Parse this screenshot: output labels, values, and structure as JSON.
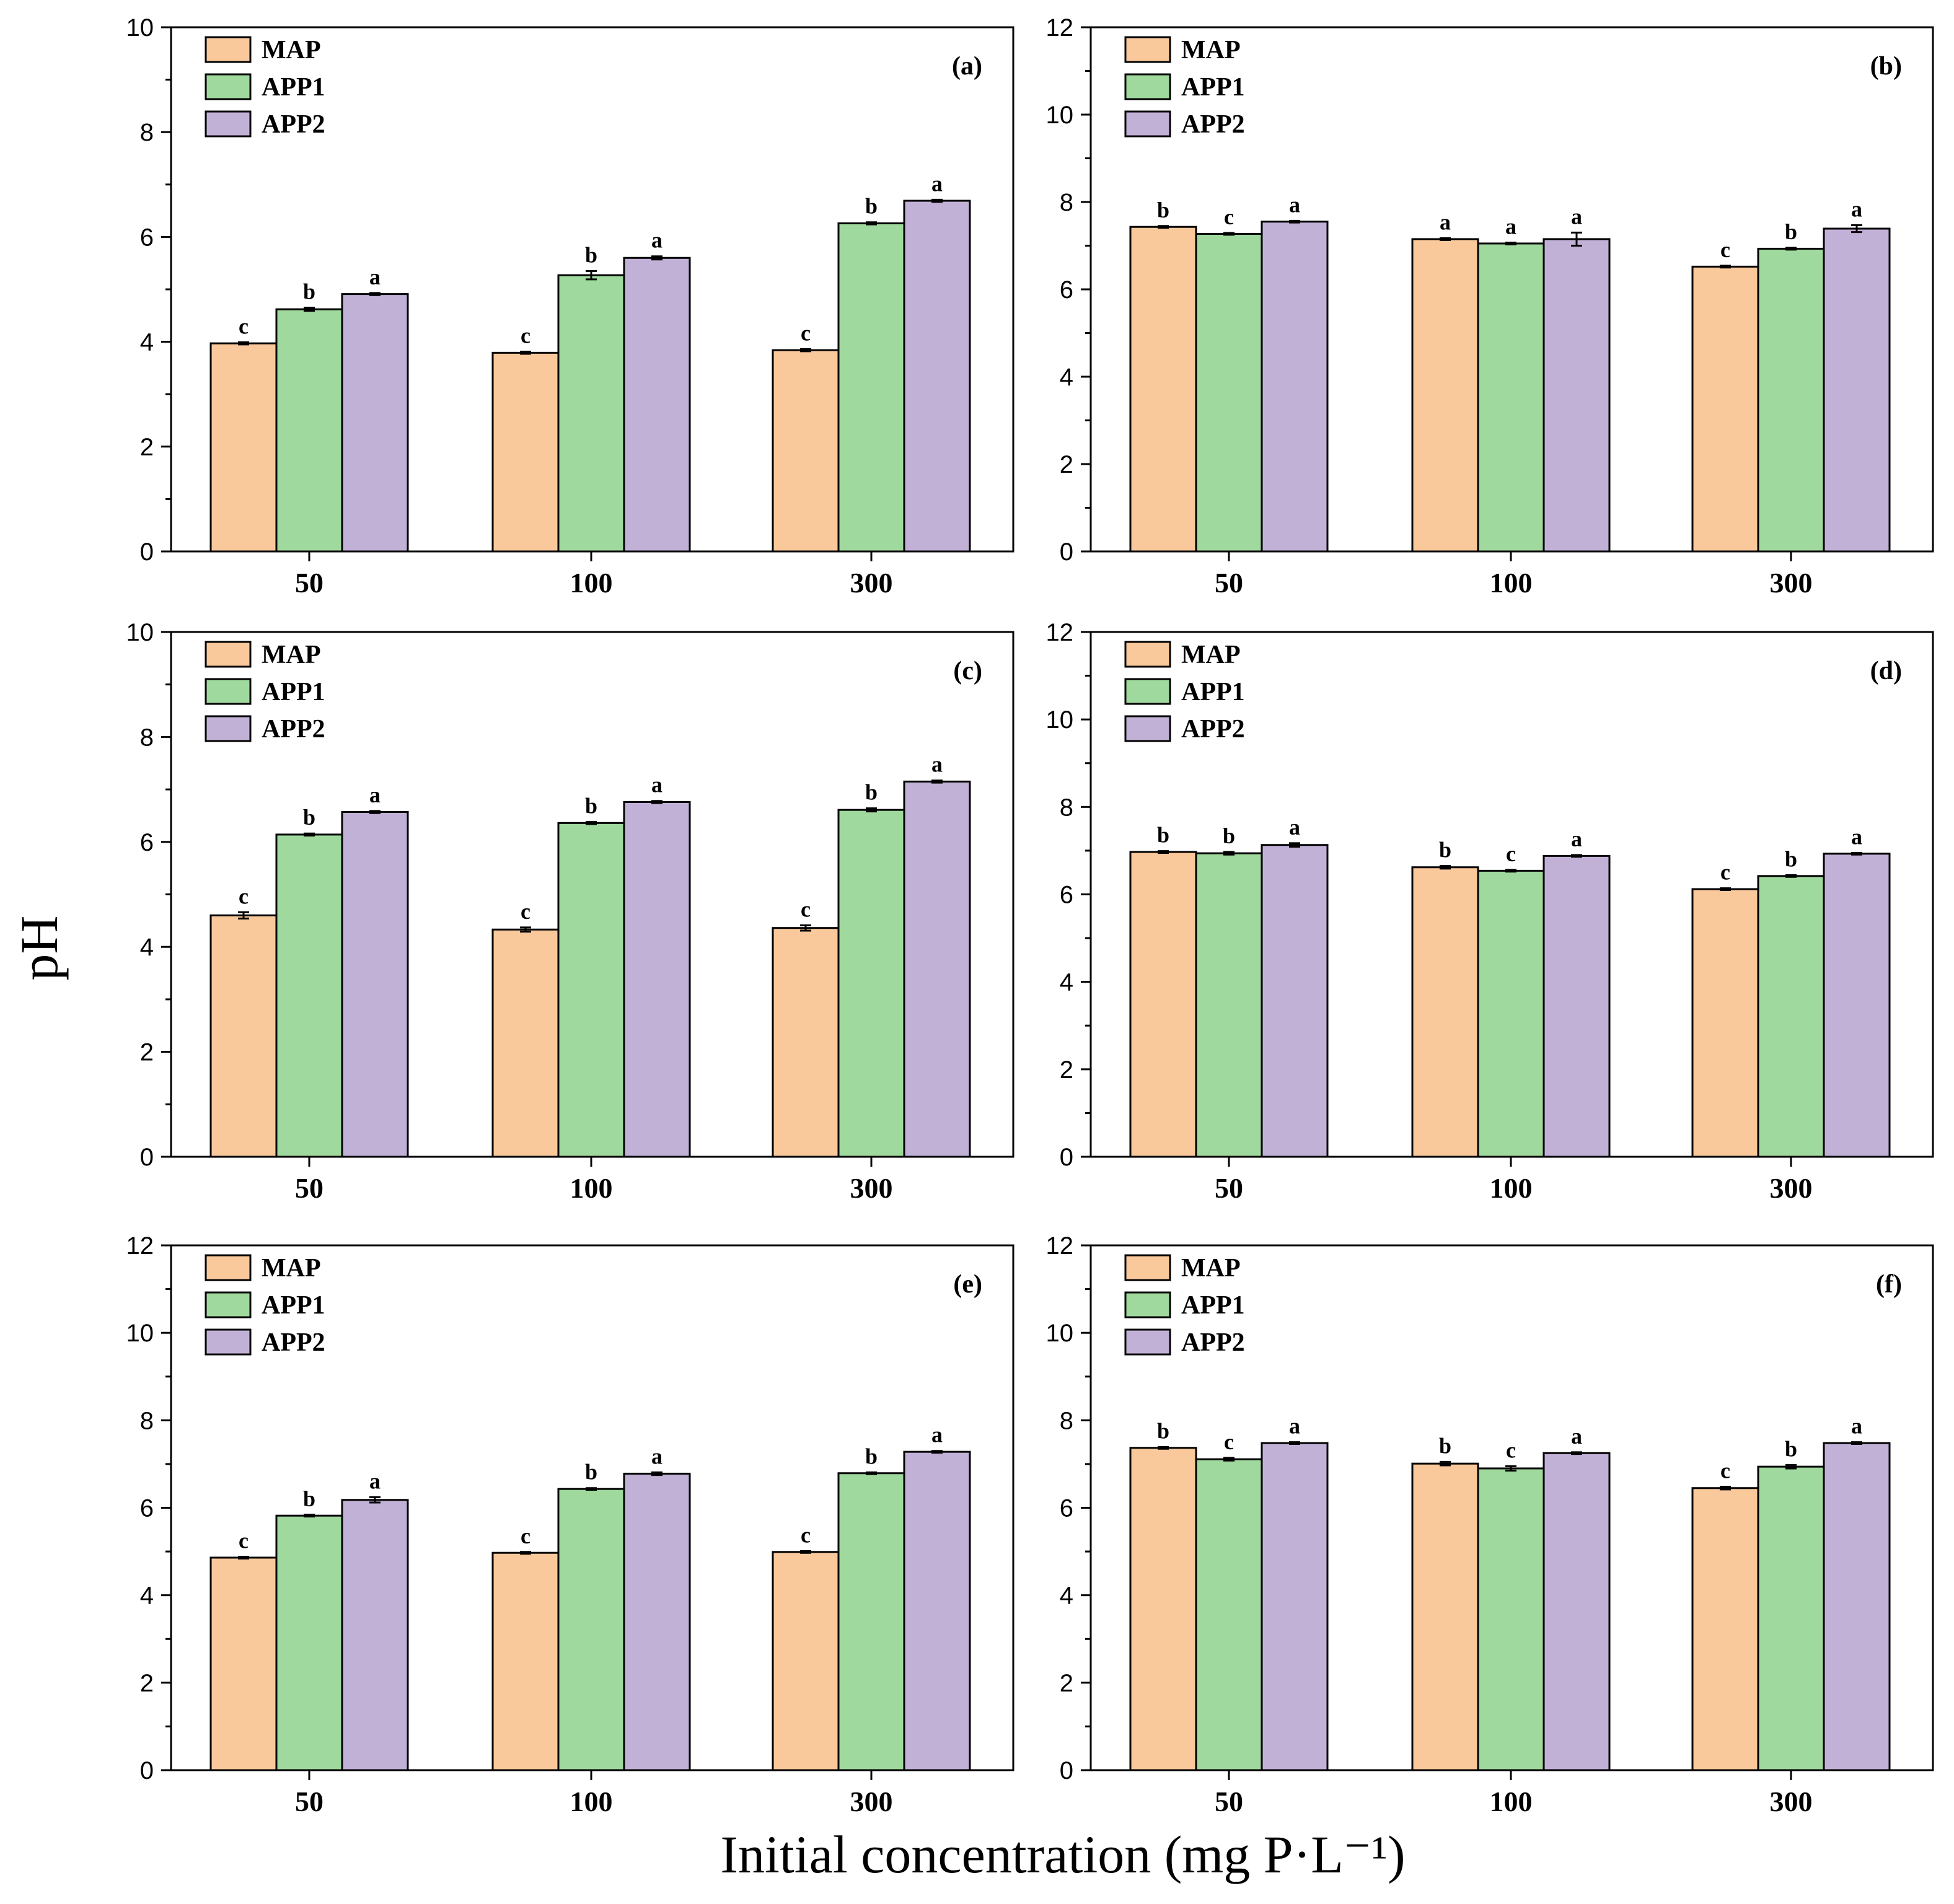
{
  "figure": {
    "ylabel": "pH",
    "xlabel": "Initial concentration (mg P·L⁻¹)"
  },
  "colors": {
    "MAP": "#f9c89b",
    "APP1": "#a0d99e",
    "APP2": "#c2b1d7"
  },
  "chart_data": [
    {
      "type": "bar",
      "panel": "(a)",
      "categories": [
        "50",
        "100",
        "300"
      ],
      "series": [
        {
          "name": "MAP",
          "values": [
            3.97,
            3.79,
            3.84
          ],
          "errors": [
            0.02,
            0.02,
            0.02
          ],
          "letters": [
            "c",
            "c",
            "c"
          ]
        },
        {
          "name": "APP1",
          "values": [
            4.62,
            5.27,
            6.26
          ],
          "errors": [
            0.03,
            0.08,
            0.02
          ],
          "letters": [
            "b",
            "b",
            "b"
          ]
        },
        {
          "name": "APP2",
          "values": [
            4.91,
            5.6,
            6.69
          ],
          "errors": [
            0.02,
            0.03,
            0.02
          ],
          "letters": [
            "a",
            "a",
            "a"
          ]
        }
      ],
      "ylim": [
        0,
        10
      ],
      "yticks": [
        0,
        2,
        4,
        6,
        8,
        10
      ]
    },
    {
      "type": "bar",
      "panel": "(b)",
      "categories": [
        "50",
        "100",
        "300"
      ],
      "series": [
        {
          "name": "MAP",
          "values": [
            7.43,
            7.15,
            6.52
          ],
          "errors": [
            0.02,
            0.02,
            0.02
          ],
          "letters": [
            "b",
            "a",
            "c"
          ]
        },
        {
          "name": "APP1",
          "values": [
            7.27,
            7.05,
            6.93
          ],
          "errors": [
            0.02,
            0.02,
            0.02
          ],
          "letters": [
            "c",
            "a",
            "b"
          ]
        },
        {
          "name": "APP2",
          "values": [
            7.55,
            7.15,
            7.39
          ],
          "errors": [
            0.02,
            0.15,
            0.08
          ],
          "letters": [
            "a",
            "a",
            "a"
          ]
        }
      ],
      "ylim": [
        0,
        12
      ],
      "yticks": [
        0,
        2,
        4,
        6,
        8,
        10,
        12
      ]
    },
    {
      "type": "bar",
      "panel": "(c)",
      "categories": [
        "50",
        "100",
        "300"
      ],
      "series": [
        {
          "name": "MAP",
          "values": [
            4.6,
            4.33,
            4.36
          ],
          "errors": [
            0.06,
            0.04,
            0.05
          ],
          "letters": [
            "c",
            "c",
            "c"
          ]
        },
        {
          "name": "APP1",
          "values": [
            6.14,
            6.36,
            6.61
          ],
          "errors": [
            0.02,
            0.02,
            0.03
          ],
          "letters": [
            "b",
            "b",
            "b"
          ]
        },
        {
          "name": "APP2",
          "values": [
            6.57,
            6.76,
            7.15
          ],
          "errors": [
            0.02,
            0.02,
            0.02
          ],
          "letters": [
            "a",
            "a",
            "a"
          ]
        }
      ],
      "ylim": [
        0,
        10
      ],
      "yticks": [
        0,
        2,
        4,
        6,
        8,
        10
      ]
    },
    {
      "type": "bar",
      "panel": "(d)",
      "categories": [
        "50",
        "100",
        "300"
      ],
      "series": [
        {
          "name": "MAP",
          "values": [
            6.97,
            6.62,
            6.12
          ],
          "errors": [
            0.02,
            0.03,
            0.02
          ],
          "letters": [
            "b",
            "b",
            "c"
          ]
        },
        {
          "name": "APP1",
          "values": [
            6.94,
            6.54,
            6.42
          ],
          "errors": [
            0.03,
            0.02,
            0.02
          ],
          "letters": [
            "b",
            "c",
            "b"
          ]
        },
        {
          "name": "APP2",
          "values": [
            7.13,
            6.88,
            6.93
          ],
          "errors": [
            0.04,
            0.02,
            0.02
          ],
          "letters": [
            "a",
            "a",
            "a"
          ]
        }
      ],
      "ylim": [
        0,
        12
      ],
      "yticks": [
        0,
        2,
        4,
        6,
        8,
        10,
        12
      ]
    },
    {
      "type": "bar",
      "panel": "(e)",
      "categories": [
        "50",
        "100",
        "300"
      ],
      "series": [
        {
          "name": "MAP",
          "values": [
            4.86,
            4.97,
            4.99
          ],
          "errors": [
            0.02,
            0.02,
            0.02
          ],
          "letters": [
            "c",
            "c",
            "c"
          ]
        },
        {
          "name": "APP1",
          "values": [
            5.82,
            6.43,
            6.79
          ],
          "errors": [
            0.02,
            0.02,
            0.02
          ],
          "letters": [
            "b",
            "b",
            "b"
          ]
        },
        {
          "name": "APP2",
          "values": [
            6.18,
            6.78,
            7.28
          ],
          "errors": [
            0.06,
            0.03,
            0.02
          ],
          "letters": [
            "a",
            "a",
            "a"
          ]
        }
      ],
      "ylim": [
        0,
        12
      ],
      "yticks": [
        0,
        2,
        4,
        6,
        8,
        10,
        12
      ]
    },
    {
      "type": "bar",
      "panel": "(f)",
      "categories": [
        "50",
        "100",
        "300"
      ],
      "series": [
        {
          "name": "MAP",
          "values": [
            7.37,
            7.01,
            6.45
          ],
          "errors": [
            0.02,
            0.04,
            0.03
          ],
          "letters": [
            "b",
            "b",
            "c"
          ]
        },
        {
          "name": "APP1",
          "values": [
            7.11,
            6.9,
            6.94
          ],
          "errors": [
            0.03,
            0.05,
            0.04
          ],
          "letters": [
            "c",
            "c",
            "b"
          ]
        },
        {
          "name": "APP2",
          "values": [
            7.48,
            7.25,
            7.48
          ],
          "errors": [
            0.02,
            0.02,
            0.02
          ],
          "letters": [
            "a",
            "a",
            "a"
          ]
        }
      ],
      "ylim": [
        0,
        12
      ],
      "yticks": [
        0,
        2,
        4,
        6,
        8,
        10,
        12
      ]
    }
  ]
}
